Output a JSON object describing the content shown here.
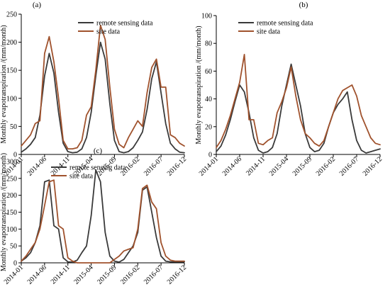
{
  "chart_data": [
    {
      "type": "line",
      "panel_label": "(a)",
      "ylabel": "Monthly evapotranspiration /(mm/month)",
      "xlabel": "",
      "ylim": [
        0,
        250
      ],
      "yticks": [
        0,
        50,
        100,
        150,
        200,
        250
      ],
      "x_tick_labels": [
        "2014-01",
        "2014-06",
        "2014-11",
        "2015-04",
        "2015-09",
        "2016-02",
        "2016-07",
        "2016-12"
      ],
      "legend_position": "top-center",
      "series": [
        {
          "name": "remote sensing data",
          "color": "#3a3a3a",
          "values": [
            4,
            10,
            18,
            30,
            70,
            140,
            180,
            145,
            75,
            20,
            5,
            3,
            4,
            10,
            30,
            75,
            140,
            200,
            170,
            90,
            25,
            5,
            3,
            5,
            12,
            25,
            40,
            80,
            135,
            165,
            110,
            55,
            20,
            10,
            4,
            3
          ]
        },
        {
          "name": "site data",
          "color": "#a0522d",
          "values": [
            15,
            25,
            35,
            55,
            60,
            180,
            210,
            165,
            100,
            25,
            10,
            10,
            12,
            25,
            70,
            85,
            150,
            230,
            205,
            120,
            45,
            18,
            12,
            30,
            45,
            60,
            50,
            110,
            155,
            170,
            120,
            120,
            35,
            30,
            20,
            15
          ]
        }
      ]
    },
    {
      "type": "line",
      "panel_label": "(b)",
      "ylabel": "Monthly evapotranspiration /(mm/month)",
      "xlabel": "",
      "ylim": [
        0,
        100
      ],
      "yticks": [
        0,
        20,
        40,
        60,
        80,
        100
      ],
      "x_tick_labels": [
        "2014-01",
        "2014-06",
        "2014-11",
        "2015-04",
        "2015-09",
        "2016-02",
        "2016-07",
        "2016-12"
      ],
      "legend_position": "top-center",
      "series": [
        {
          "name": "remote sensing data",
          "color": "#3a3a3a",
          "values": [
            2,
            6,
            14,
            25,
            38,
            50,
            45,
            30,
            12,
            3,
            1,
            2,
            5,
            15,
            35,
            50,
            65,
            50,
            35,
            15,
            5,
            2,
            3,
            8,
            20,
            30,
            36,
            40,
            45,
            25,
            10,
            3,
            1,
            2,
            3,
            4
          ]
        },
        {
          "name": "site data",
          "color": "#a0522d",
          "values": [
            5,
            10,
            18,
            28,
            40,
            52,
            72,
            25,
            25,
            8,
            7,
            10,
            12,
            30,
            38,
            48,
            63,
            42,
            25,
            15,
            12,
            8,
            6,
            10,
            20,
            30,
            40,
            46,
            48,
            50,
            42,
            28,
            20,
            12,
            8,
            7
          ]
        }
      ]
    },
    {
      "type": "line",
      "panel_label": "(c)",
      "ylabel": "Monthly evapotranspiration /(mm/month)",
      "xlabel": "",
      "ylim": [
        0,
        300
      ],
      "yticks": [
        0,
        50,
        100,
        150,
        200,
        250,
        300
      ],
      "x_tick_labels": [
        "2014-01",
        "2014-06",
        "2014-11",
        "2015-04",
        "2015-09",
        "2016-02",
        "2016-07",
        "2016-12"
      ],
      "legend_position": "top-center",
      "series": [
        {
          "name": "remote sensing data",
          "color": "#3a3a3a",
          "values": [
            5,
            15,
            30,
            60,
            110,
            240,
            245,
            110,
            100,
            15,
            3,
            2,
            8,
            30,
            50,
            140,
            275,
            240,
            90,
            20,
            5,
            2,
            10,
            30,
            50,
            90,
            215,
            225,
            150,
            75,
            20,
            5,
            3,
            3,
            3,
            3
          ]
        },
        {
          "name": "site data",
          "color": "#a0522d",
          "values": [
            5,
            20,
            40,
            60,
            100,
            170,
            240,
            245,
            110,
            100,
            15,
            5,
            0,
            0,
            0,
            0,
            0,
            0,
            0,
            0,
            10,
            20,
            35,
            40,
            45,
            100,
            220,
            230,
            180,
            160,
            60,
            20,
            8,
            5,
            5,
            5
          ]
        }
      ]
    }
  ]
}
